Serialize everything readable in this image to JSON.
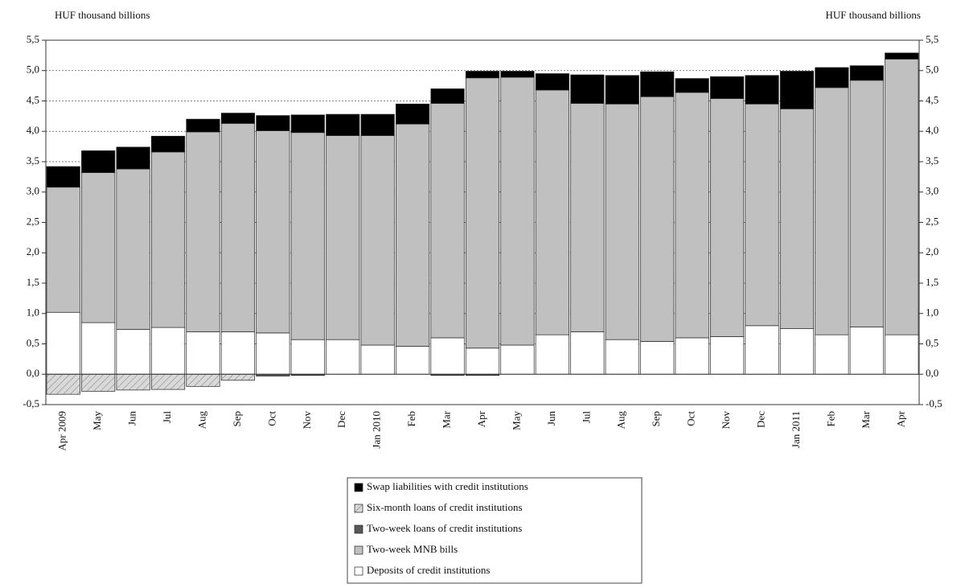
{
  "chart_data": {
    "type": "stacked-bar",
    "y_label": "HUF thousand billions",
    "y2_label": "HUF thousand billions",
    "categories": [
      "Apr 2009",
      "May",
      "Jun",
      "Jul",
      "Aug",
      "Sep",
      "Oct",
      "Nov",
      "Dec",
      "Jan 2010",
      "Feb",
      "Mar",
      "Apr",
      "May",
      "Jun",
      "Jul",
      "Aug",
      "Sep",
      "Oct",
      "Nov",
      "Dec",
      "Jan 2011",
      "Feb",
      "Mar",
      "Apr"
    ],
    "series": [
      {
        "name": "Deposits of  credit institutions",
        "color": "#ffffff",
        "values": [
          1.02,
          0.85,
          0.74,
          0.77,
          0.7,
          0.7,
          0.68,
          0.57,
          0.57,
          0.48,
          0.46,
          0.6,
          0.43,
          0.48,
          0.65,
          0.7,
          0.57,
          0.54,
          0.6,
          0.62,
          0.8,
          0.75,
          0.65,
          0.78,
          0.65
        ]
      },
      {
        "name": "Two-week MNB bills",
        "color": "#c0c0c0",
        "values": [
          2.06,
          2.47,
          2.64,
          2.89,
          3.29,
          3.43,
          3.33,
          3.41,
          3.36,
          3.45,
          3.66,
          3.86,
          4.45,
          4.41,
          4.03,
          3.76,
          3.88,
          4.03,
          4.04,
          3.92,
          3.65,
          3.62,
          4.07,
          4.06,
          4.54
        ]
      },
      {
        "name": "Two-week loans of credit institutions",
        "color": "#595959",
        "values": [
          0,
          0,
          0,
          0,
          0,
          0,
          -0.03,
          -0.02,
          0,
          0,
          0,
          -0.02,
          -0.02,
          0,
          0,
          0,
          0,
          0,
          0,
          0,
          0,
          0,
          0,
          0,
          0
        ]
      },
      {
        "name": "Six-month loans of  credit institutions",
        "color": "#d9d9d9",
        "hatched": true,
        "values": [
          -0.33,
          -0.28,
          -0.26,
          -0.25,
          -0.2,
          -0.1,
          0,
          0,
          0,
          0,
          0,
          0,
          0,
          0,
          0,
          0,
          0,
          0,
          0,
          0,
          0,
          0,
          0,
          0,
          0
        ]
      },
      {
        "name": "Swap liabilities with credit institutions",
        "color": "#000000",
        "values": [
          0.34,
          0.36,
          0.36,
          0.26,
          0.21,
          0.17,
          0.25,
          0.29,
          0.35,
          0.35,
          0.33,
          0.24,
          0.11,
          0.1,
          0.27,
          0.47,
          0.47,
          0.41,
          0.23,
          0.36,
          0.47,
          0.62,
          0.33,
          0.24,
          0.1
        ]
      }
    ],
    "ylim": [
      -0.5,
      5.5
    ],
    "yticks": [
      {
        "value": -0.5,
        "label": "-0,5"
      },
      {
        "value": 0,
        "label": "0,0"
      },
      {
        "value": 0.5,
        "label": "0,5"
      },
      {
        "value": 1,
        "label": "1,0"
      },
      {
        "value": 1.5,
        "label": "1,5"
      },
      {
        "value": 2,
        "label": "2,0"
      },
      {
        "value": 2.5,
        "label": "2,5"
      },
      {
        "value": 3,
        "label": "3,0"
      },
      {
        "value": 3.5,
        "label": "3,5"
      },
      {
        "value": 4,
        "label": "4,0"
      },
      {
        "value": 4.5,
        "label": "4,5"
      },
      {
        "value": 5,
        "label": "5,0"
      },
      {
        "value": 5.5,
        "label": "5,5"
      }
    ],
    "y2lim": [
      -0.5,
      5.5
    ],
    "y2ticks": [
      {
        "value": -0.5,
        "label": "-0,5"
      },
      {
        "value": 0,
        "label": "0,0"
      },
      {
        "value": 0.5,
        "label": "0,5"
      },
      {
        "value": 1,
        "label": "1,0"
      },
      {
        "value": 1.5,
        "label": "1,5"
      },
      {
        "value": 2,
        "label": "2,0"
      },
      {
        "value": 2.5,
        "label": "2,5"
      },
      {
        "value": 3,
        "label": "3,0"
      },
      {
        "value": 3.5,
        "label": "3,5"
      },
      {
        "value": 4,
        "label": "4,0"
      },
      {
        "value": 4.5,
        "label": "4,5"
      },
      {
        "value": 5,
        "label": "5,0"
      },
      {
        "value": 5.5,
        "label": "5,5"
      }
    ],
    "grid": true,
    "legend": "bottom"
  }
}
